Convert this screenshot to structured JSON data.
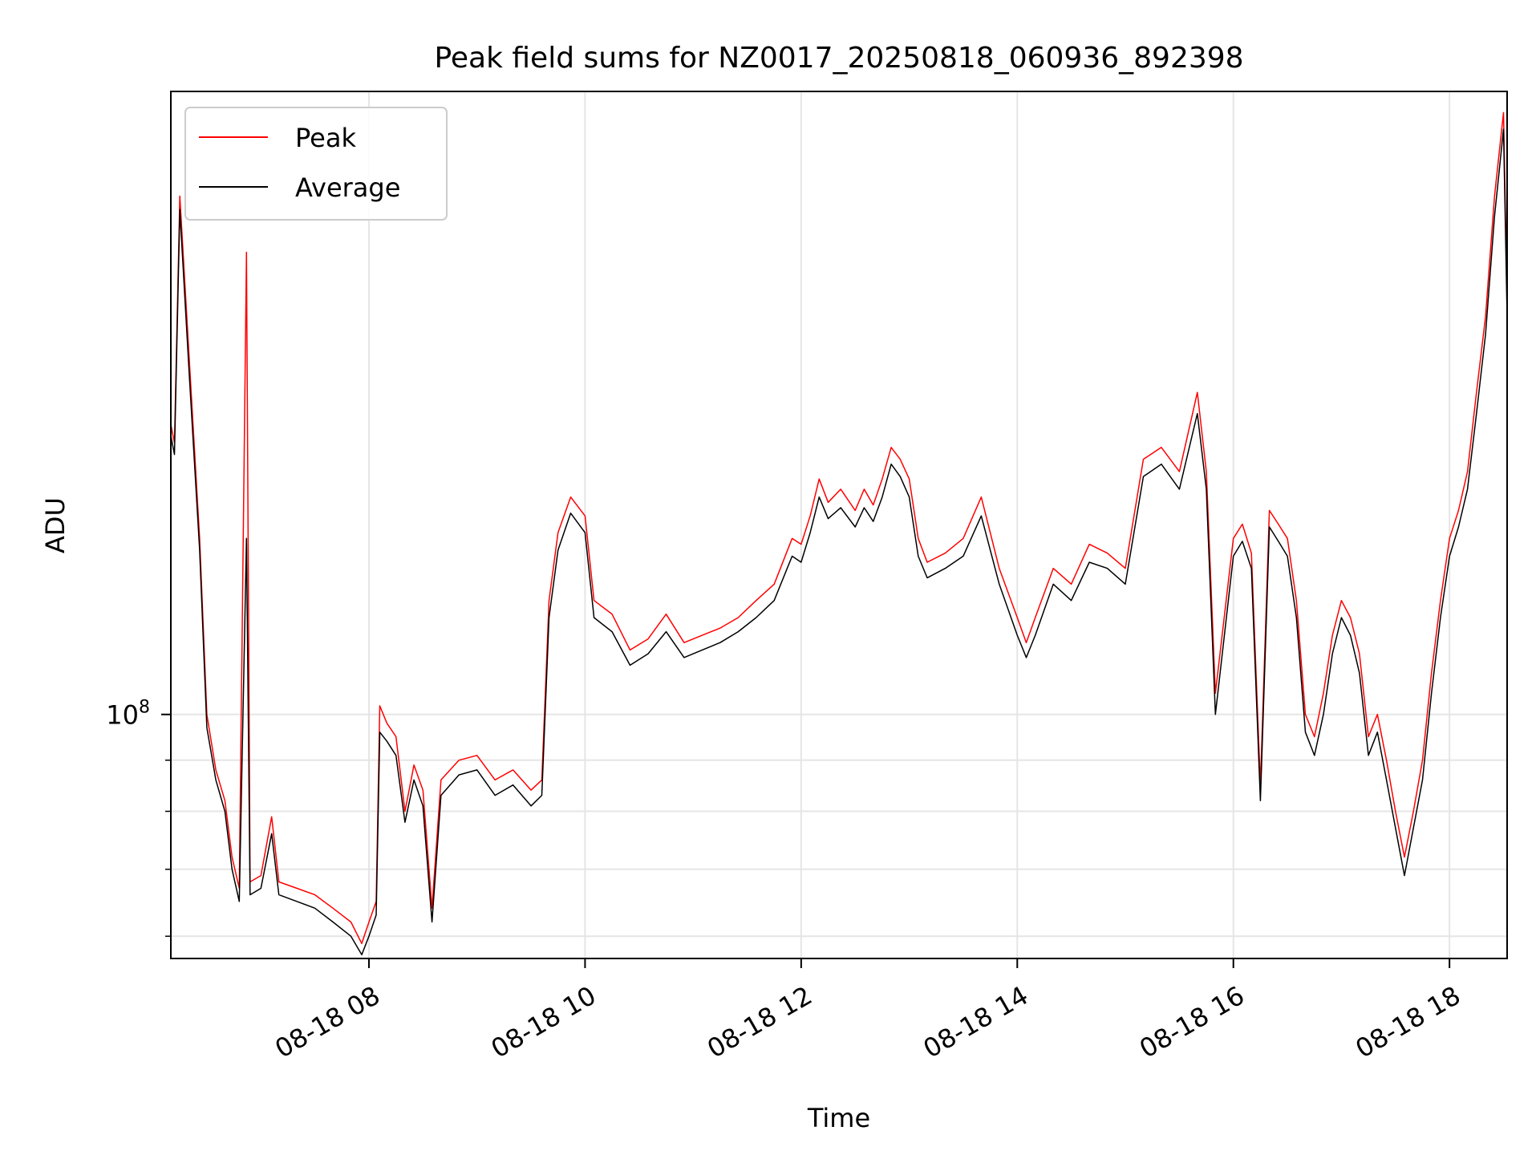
{
  "chart_data": {
    "type": "line",
    "title": "Peak field sums for NZ0017_20250818_060936_892398",
    "xlabel": "Time",
    "ylabel": "ADU",
    "x_axis": "time",
    "y_scale": "log",
    "xlim": [
      "2025-08-18 06:10",
      "2025-08-18 18:32"
    ],
    "ylim": [
      57000000,
      420000000
    ],
    "x_ticks": [
      {
        "t": "2025-08-18 08:00",
        "label": "08-18 08"
      },
      {
        "t": "2025-08-18 10:00",
        "label": "08-18 10"
      },
      {
        "t": "2025-08-18 12:00",
        "label": "08-18 12"
      },
      {
        "t": "2025-08-18 14:00",
        "label": "08-18 14"
      },
      {
        "t": "2025-08-18 16:00",
        "label": "08-18 16"
      },
      {
        "t": "2025-08-18 18:00",
        "label": "08-18 18"
      }
    ],
    "y_major_ticks": [
      {
        "value": 100000000,
        "label_base": "10",
        "label_exp": "8"
      }
    ],
    "y_minor_ticks": [
      60000000,
      70000000,
      80000000,
      90000000
    ],
    "grid": true,
    "legend": {
      "position": "top-left",
      "entries": [
        "Peak",
        "Average"
      ]
    },
    "series": [
      {
        "name": "Peak",
        "color": "#ff0000",
        "points": [
          [
            "2025-08-18 06:10",
            195000000
          ],
          [
            "2025-08-18 06:12",
            187000000
          ],
          [
            "2025-08-18 06:15",
            330000000
          ],
          [
            "2025-08-18 06:20",
            230000000
          ],
          [
            "2025-08-18 06:26",
            150000000
          ],
          [
            "2025-08-18 06:30",
            100000000
          ],
          [
            "2025-08-18 06:35",
            88000000
          ],
          [
            "2025-08-18 06:40",
            82000000
          ],
          [
            "2025-08-18 06:44",
            72000000
          ],
          [
            "2025-08-18 06:48",
            67000000
          ],
          [
            "2025-08-18 06:52",
            290000000
          ],
          [
            "2025-08-18 06:54",
            68000000
          ],
          [
            "2025-08-18 07:00",
            69000000
          ],
          [
            "2025-08-18 07:06",
            79000000
          ],
          [
            "2025-08-18 07:10",
            68000000
          ],
          [
            "2025-08-18 07:20",
            67000000
          ],
          [
            "2025-08-18 07:30",
            66000000
          ],
          [
            "2025-08-18 07:40",
            64000000
          ],
          [
            "2025-08-18 07:50",
            62000000
          ],
          [
            "2025-08-18 07:56",
            59000000
          ],
          [
            "2025-08-18 08:00",
            62000000
          ],
          [
            "2025-08-18 08:04",
            65000000
          ],
          [
            "2025-08-18 08:06",
            102000000
          ],
          [
            "2025-08-18 08:10",
            98000000
          ],
          [
            "2025-08-18 08:15",
            95000000
          ],
          [
            "2025-08-18 08:20",
            80000000
          ],
          [
            "2025-08-18 08:25",
            89000000
          ],
          [
            "2025-08-18 08:30",
            84000000
          ],
          [
            "2025-08-18 08:35",
            64000000
          ],
          [
            "2025-08-18 08:40",
            86000000
          ],
          [
            "2025-08-18 08:50",
            90000000
          ],
          [
            "2025-08-18 09:00",
            91000000
          ],
          [
            "2025-08-18 09:10",
            86000000
          ],
          [
            "2025-08-18 09:20",
            88000000
          ],
          [
            "2025-08-18 09:30",
            84000000
          ],
          [
            "2025-08-18 09:36",
            86000000
          ],
          [
            "2025-08-18 09:40",
            130000000
          ],
          [
            "2025-08-18 09:45",
            152000000
          ],
          [
            "2025-08-18 09:52",
            165000000
          ],
          [
            "2025-08-18 10:00",
            158000000
          ],
          [
            "2025-08-18 10:05",
            130000000
          ],
          [
            "2025-08-18 10:15",
            126000000
          ],
          [
            "2025-08-18 10:25",
            116000000
          ],
          [
            "2025-08-18 10:35",
            119000000
          ],
          [
            "2025-08-18 10:45",
            126000000
          ],
          [
            "2025-08-18 10:55",
            118000000
          ],
          [
            "2025-08-18 11:05",
            120000000
          ],
          [
            "2025-08-18 11:15",
            122000000
          ],
          [
            "2025-08-18 11:25",
            125000000
          ],
          [
            "2025-08-18 11:35",
            130000000
          ],
          [
            "2025-08-18 11:45",
            135000000
          ],
          [
            "2025-08-18 11:55",
            150000000
          ],
          [
            "2025-08-18 12:00",
            148000000
          ],
          [
            "2025-08-18 12:05",
            158000000
          ],
          [
            "2025-08-18 12:10",
            172000000
          ],
          [
            "2025-08-18 12:15",
            163000000
          ],
          [
            "2025-08-18 12:22",
            168000000
          ],
          [
            "2025-08-18 12:30",
            160000000
          ],
          [
            "2025-08-18 12:35",
            168000000
          ],
          [
            "2025-08-18 12:40",
            162000000
          ],
          [
            "2025-08-18 12:45",
            172000000
          ],
          [
            "2025-08-18 12:50",
            185000000
          ],
          [
            "2025-08-18 12:55",
            180000000
          ],
          [
            "2025-08-18 13:00",
            172000000
          ],
          [
            "2025-08-18 13:05",
            150000000
          ],
          [
            "2025-08-18 13:10",
            142000000
          ],
          [
            "2025-08-18 13:20",
            145000000
          ],
          [
            "2025-08-18 13:30",
            150000000
          ],
          [
            "2025-08-18 13:40",
            165000000
          ],
          [
            "2025-08-18 13:50",
            140000000
          ],
          [
            "2025-08-18 14:00",
            125000000
          ],
          [
            "2025-08-18 14:05",
            118000000
          ],
          [
            "2025-08-18 14:10",
            125000000
          ],
          [
            "2025-08-18 14:20",
            140000000
          ],
          [
            "2025-08-18 14:30",
            135000000
          ],
          [
            "2025-08-18 14:40",
            148000000
          ],
          [
            "2025-08-18 14:50",
            145000000
          ],
          [
            "2025-08-18 15:00",
            140000000
          ],
          [
            "2025-08-18 15:10",
            180000000
          ],
          [
            "2025-08-18 15:20",
            185000000
          ],
          [
            "2025-08-18 15:30",
            175000000
          ],
          [
            "2025-08-18 15:40",
            210000000
          ],
          [
            "2025-08-18 15:45",
            175000000
          ],
          [
            "2025-08-18 15:50",
            105000000
          ],
          [
            "2025-08-18 16:00",
            150000000
          ],
          [
            "2025-08-18 16:05",
            155000000
          ],
          [
            "2025-08-18 16:10",
            145000000
          ],
          [
            "2025-08-18 16:15",
            85000000
          ],
          [
            "2025-08-18 16:20",
            160000000
          ],
          [
            "2025-08-18 16:25",
            155000000
          ],
          [
            "2025-08-18 16:30",
            150000000
          ],
          [
            "2025-08-18 16:35",
            130000000
          ],
          [
            "2025-08-18 16:40",
            100000000
          ],
          [
            "2025-08-18 16:45",
            95000000
          ],
          [
            "2025-08-18 16:50",
            105000000
          ],
          [
            "2025-08-18 16:55",
            120000000
          ],
          [
            "2025-08-18 17:00",
            130000000
          ],
          [
            "2025-08-18 17:05",
            125000000
          ],
          [
            "2025-08-18 17:10",
            115000000
          ],
          [
            "2025-08-18 17:15",
            95000000
          ],
          [
            "2025-08-18 17:20",
            100000000
          ],
          [
            "2025-08-18 17:25",
            90000000
          ],
          [
            "2025-08-18 17:30",
            80000000
          ],
          [
            "2025-08-18 17:35",
            72000000
          ],
          [
            "2025-08-18 17:40",
            80000000
          ],
          [
            "2025-08-18 17:45",
            90000000
          ],
          [
            "2025-08-18 17:50",
            110000000
          ],
          [
            "2025-08-18 17:55",
            130000000
          ],
          [
            "2025-08-18 18:00",
            150000000
          ],
          [
            "2025-08-18 18:05",
            160000000
          ],
          [
            "2025-08-18 18:10",
            175000000
          ],
          [
            "2025-08-18 18:15",
            210000000
          ],
          [
            "2025-08-18 18:20",
            250000000
          ],
          [
            "2025-08-18 18:25",
            330000000
          ],
          [
            "2025-08-18 18:30",
            400000000
          ],
          [
            "2025-08-18 18:32",
            260000000
          ]
        ]
      },
      {
        "name": "Average",
        "color": "#000000",
        "points": [
          [
            "2025-08-18 06:10",
            190000000
          ],
          [
            "2025-08-18 06:12",
            182000000
          ],
          [
            "2025-08-18 06:15",
            320000000
          ],
          [
            "2025-08-18 06:20",
            222000000
          ],
          [
            "2025-08-18 06:26",
            146000000
          ],
          [
            "2025-08-18 06:30",
            97000000
          ],
          [
            "2025-08-18 06:35",
            86000000
          ],
          [
            "2025-08-18 06:40",
            80000000
          ],
          [
            "2025-08-18 06:44",
            70000000
          ],
          [
            "2025-08-18 06:48",
            65000000
          ],
          [
            "2025-08-18 06:52",
            150000000
          ],
          [
            "2025-08-18 06:54",
            66000000
          ],
          [
            "2025-08-18 07:00",
            67000000
          ],
          [
            "2025-08-18 07:06",
            76000000
          ],
          [
            "2025-08-18 07:10",
            66000000
          ],
          [
            "2025-08-18 07:20",
            65000000
          ],
          [
            "2025-08-18 07:30",
            64000000
          ],
          [
            "2025-08-18 07:40",
            62000000
          ],
          [
            "2025-08-18 07:50",
            60000000
          ],
          [
            "2025-08-18 07:56",
            57500000
          ],
          [
            "2025-08-18 08:00",
            60000000
          ],
          [
            "2025-08-18 08:04",
            63000000
          ],
          [
            "2025-08-18 08:06",
            96000000
          ],
          [
            "2025-08-18 08:10",
            94000000
          ],
          [
            "2025-08-18 08:15",
            91000000
          ],
          [
            "2025-08-18 08:20",
            78000000
          ],
          [
            "2025-08-18 08:25",
            86000000
          ],
          [
            "2025-08-18 08:30",
            81000000
          ],
          [
            "2025-08-18 08:35",
            62000000
          ],
          [
            "2025-08-18 08:40",
            83000000
          ],
          [
            "2025-08-18 08:50",
            87000000
          ],
          [
            "2025-08-18 09:00",
            88000000
          ],
          [
            "2025-08-18 09:10",
            83000000
          ],
          [
            "2025-08-18 09:20",
            85000000
          ],
          [
            "2025-08-18 09:30",
            81000000
          ],
          [
            "2025-08-18 09:36",
            83000000
          ],
          [
            "2025-08-18 09:40",
            125000000
          ],
          [
            "2025-08-18 09:45",
            146000000
          ],
          [
            "2025-08-18 09:52",
            159000000
          ],
          [
            "2025-08-18 10:00",
            152000000
          ],
          [
            "2025-08-18 10:05",
            125000000
          ],
          [
            "2025-08-18 10:15",
            121000000
          ],
          [
            "2025-08-18 10:25",
            112000000
          ],
          [
            "2025-08-18 10:35",
            115000000
          ],
          [
            "2025-08-18 10:45",
            121000000
          ],
          [
            "2025-08-18 10:55",
            114000000
          ],
          [
            "2025-08-18 11:05",
            116000000
          ],
          [
            "2025-08-18 11:15",
            118000000
          ],
          [
            "2025-08-18 11:25",
            121000000
          ],
          [
            "2025-08-18 11:35",
            125000000
          ],
          [
            "2025-08-18 11:45",
            130000000
          ],
          [
            "2025-08-18 11:55",
            144000000
          ],
          [
            "2025-08-18 12:00",
            142000000
          ],
          [
            "2025-08-18 12:05",
            152000000
          ],
          [
            "2025-08-18 12:10",
            165000000
          ],
          [
            "2025-08-18 12:15",
            157000000
          ],
          [
            "2025-08-18 12:22",
            161000000
          ],
          [
            "2025-08-18 12:30",
            154000000
          ],
          [
            "2025-08-18 12:35",
            161000000
          ],
          [
            "2025-08-18 12:40",
            156000000
          ],
          [
            "2025-08-18 12:45",
            165000000
          ],
          [
            "2025-08-18 12:50",
            178000000
          ],
          [
            "2025-08-18 12:55",
            173000000
          ],
          [
            "2025-08-18 13:00",
            165000000
          ],
          [
            "2025-08-18 13:05",
            144000000
          ],
          [
            "2025-08-18 13:10",
            137000000
          ],
          [
            "2025-08-18 13:20",
            140000000
          ],
          [
            "2025-08-18 13:30",
            144000000
          ],
          [
            "2025-08-18 13:40",
            158000000
          ],
          [
            "2025-08-18 13:50",
            135000000
          ],
          [
            "2025-08-18 14:00",
            120000000
          ],
          [
            "2025-08-18 14:05",
            114000000
          ],
          [
            "2025-08-18 14:10",
            120000000
          ],
          [
            "2025-08-18 14:20",
            135000000
          ],
          [
            "2025-08-18 14:30",
            130000000
          ],
          [
            "2025-08-18 14:40",
            142000000
          ],
          [
            "2025-08-18 14:50",
            140000000
          ],
          [
            "2025-08-18 15:00",
            135000000
          ],
          [
            "2025-08-18 15:10",
            173000000
          ],
          [
            "2025-08-18 15:20",
            178000000
          ],
          [
            "2025-08-18 15:30",
            168000000
          ],
          [
            "2025-08-18 15:40",
            200000000
          ],
          [
            "2025-08-18 15:45",
            168000000
          ],
          [
            "2025-08-18 15:50",
            100000000
          ],
          [
            "2025-08-18 16:00",
            144000000
          ],
          [
            "2025-08-18 16:05",
            149000000
          ],
          [
            "2025-08-18 16:10",
            140000000
          ],
          [
            "2025-08-18 16:15",
            82000000
          ],
          [
            "2025-08-18 16:20",
            154000000
          ],
          [
            "2025-08-18 16:25",
            149000000
          ],
          [
            "2025-08-18 16:30",
            144000000
          ],
          [
            "2025-08-18 16:35",
            125000000
          ],
          [
            "2025-08-18 16:40",
            96000000
          ],
          [
            "2025-08-18 16:45",
            91000000
          ],
          [
            "2025-08-18 16:50",
            100000000
          ],
          [
            "2025-08-18 16:55",
            115000000
          ],
          [
            "2025-08-18 17:00",
            125000000
          ],
          [
            "2025-08-18 17:05",
            120000000
          ],
          [
            "2025-08-18 17:10",
            110000000
          ],
          [
            "2025-08-18 17:15",
            91000000
          ],
          [
            "2025-08-18 17:20",
            96000000
          ],
          [
            "2025-08-18 17:25",
            86000000
          ],
          [
            "2025-08-18 17:30",
            77000000
          ],
          [
            "2025-08-18 17:35",
            69000000
          ],
          [
            "2025-08-18 17:40",
            77000000
          ],
          [
            "2025-08-18 17:45",
            86000000
          ],
          [
            "2025-08-18 17:50",
            105000000
          ],
          [
            "2025-08-18 17:55",
            125000000
          ],
          [
            "2025-08-18 18:00",
            144000000
          ],
          [
            "2025-08-18 18:05",
            154000000
          ],
          [
            "2025-08-18 18:10",
            168000000
          ],
          [
            "2025-08-18 18:15",
            200000000
          ],
          [
            "2025-08-18 18:20",
            240000000
          ],
          [
            "2025-08-18 18:25",
            315000000
          ],
          [
            "2025-08-18 18:30",
            385000000
          ],
          [
            "2025-08-18 18:32",
            250000000
          ]
        ]
      }
    ]
  }
}
